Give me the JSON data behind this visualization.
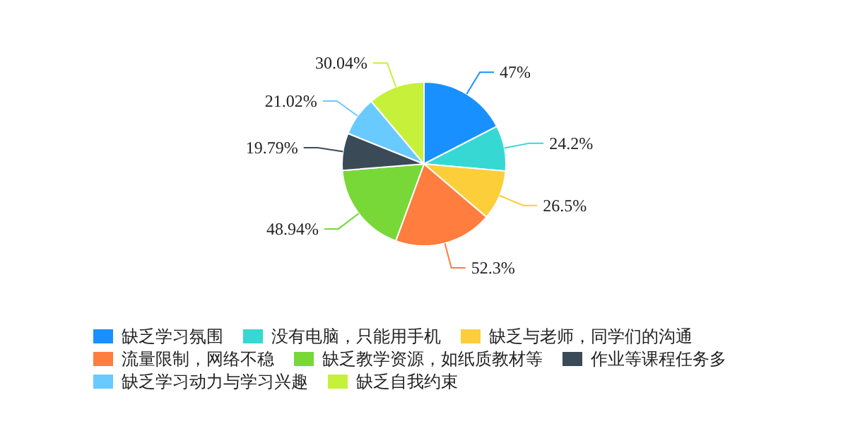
{
  "chart_data": {
    "type": "pie",
    "categories": [
      "缺乏学习氛围",
      "没有电脑，只能用手机",
      "缺乏与老师，同学们的沟通",
      "流量限制，网络不稳",
      "缺乏教学资源，如纸质教材等",
      "作业等课程任务多",
      "缺乏学习动力与学习兴趣",
      "缺乏自我约束"
    ],
    "values": [
      47,
      24.2,
      26.5,
      52.3,
      48.94,
      19.79,
      21.02,
      30.04
    ],
    "value_labels": [
      "47%",
      "24.2%",
      "26.5%",
      "52.3%",
      "48.94%",
      "19.79%",
      "21.02%",
      "30.04%"
    ],
    "colors": [
      "#1890ff",
      "#36d8d4",
      "#fcce3a",
      "#ff7d3e",
      "#77d838",
      "#3a4b57",
      "#69caff",
      "#c6f03a"
    ],
    "legend": "bottom"
  }
}
